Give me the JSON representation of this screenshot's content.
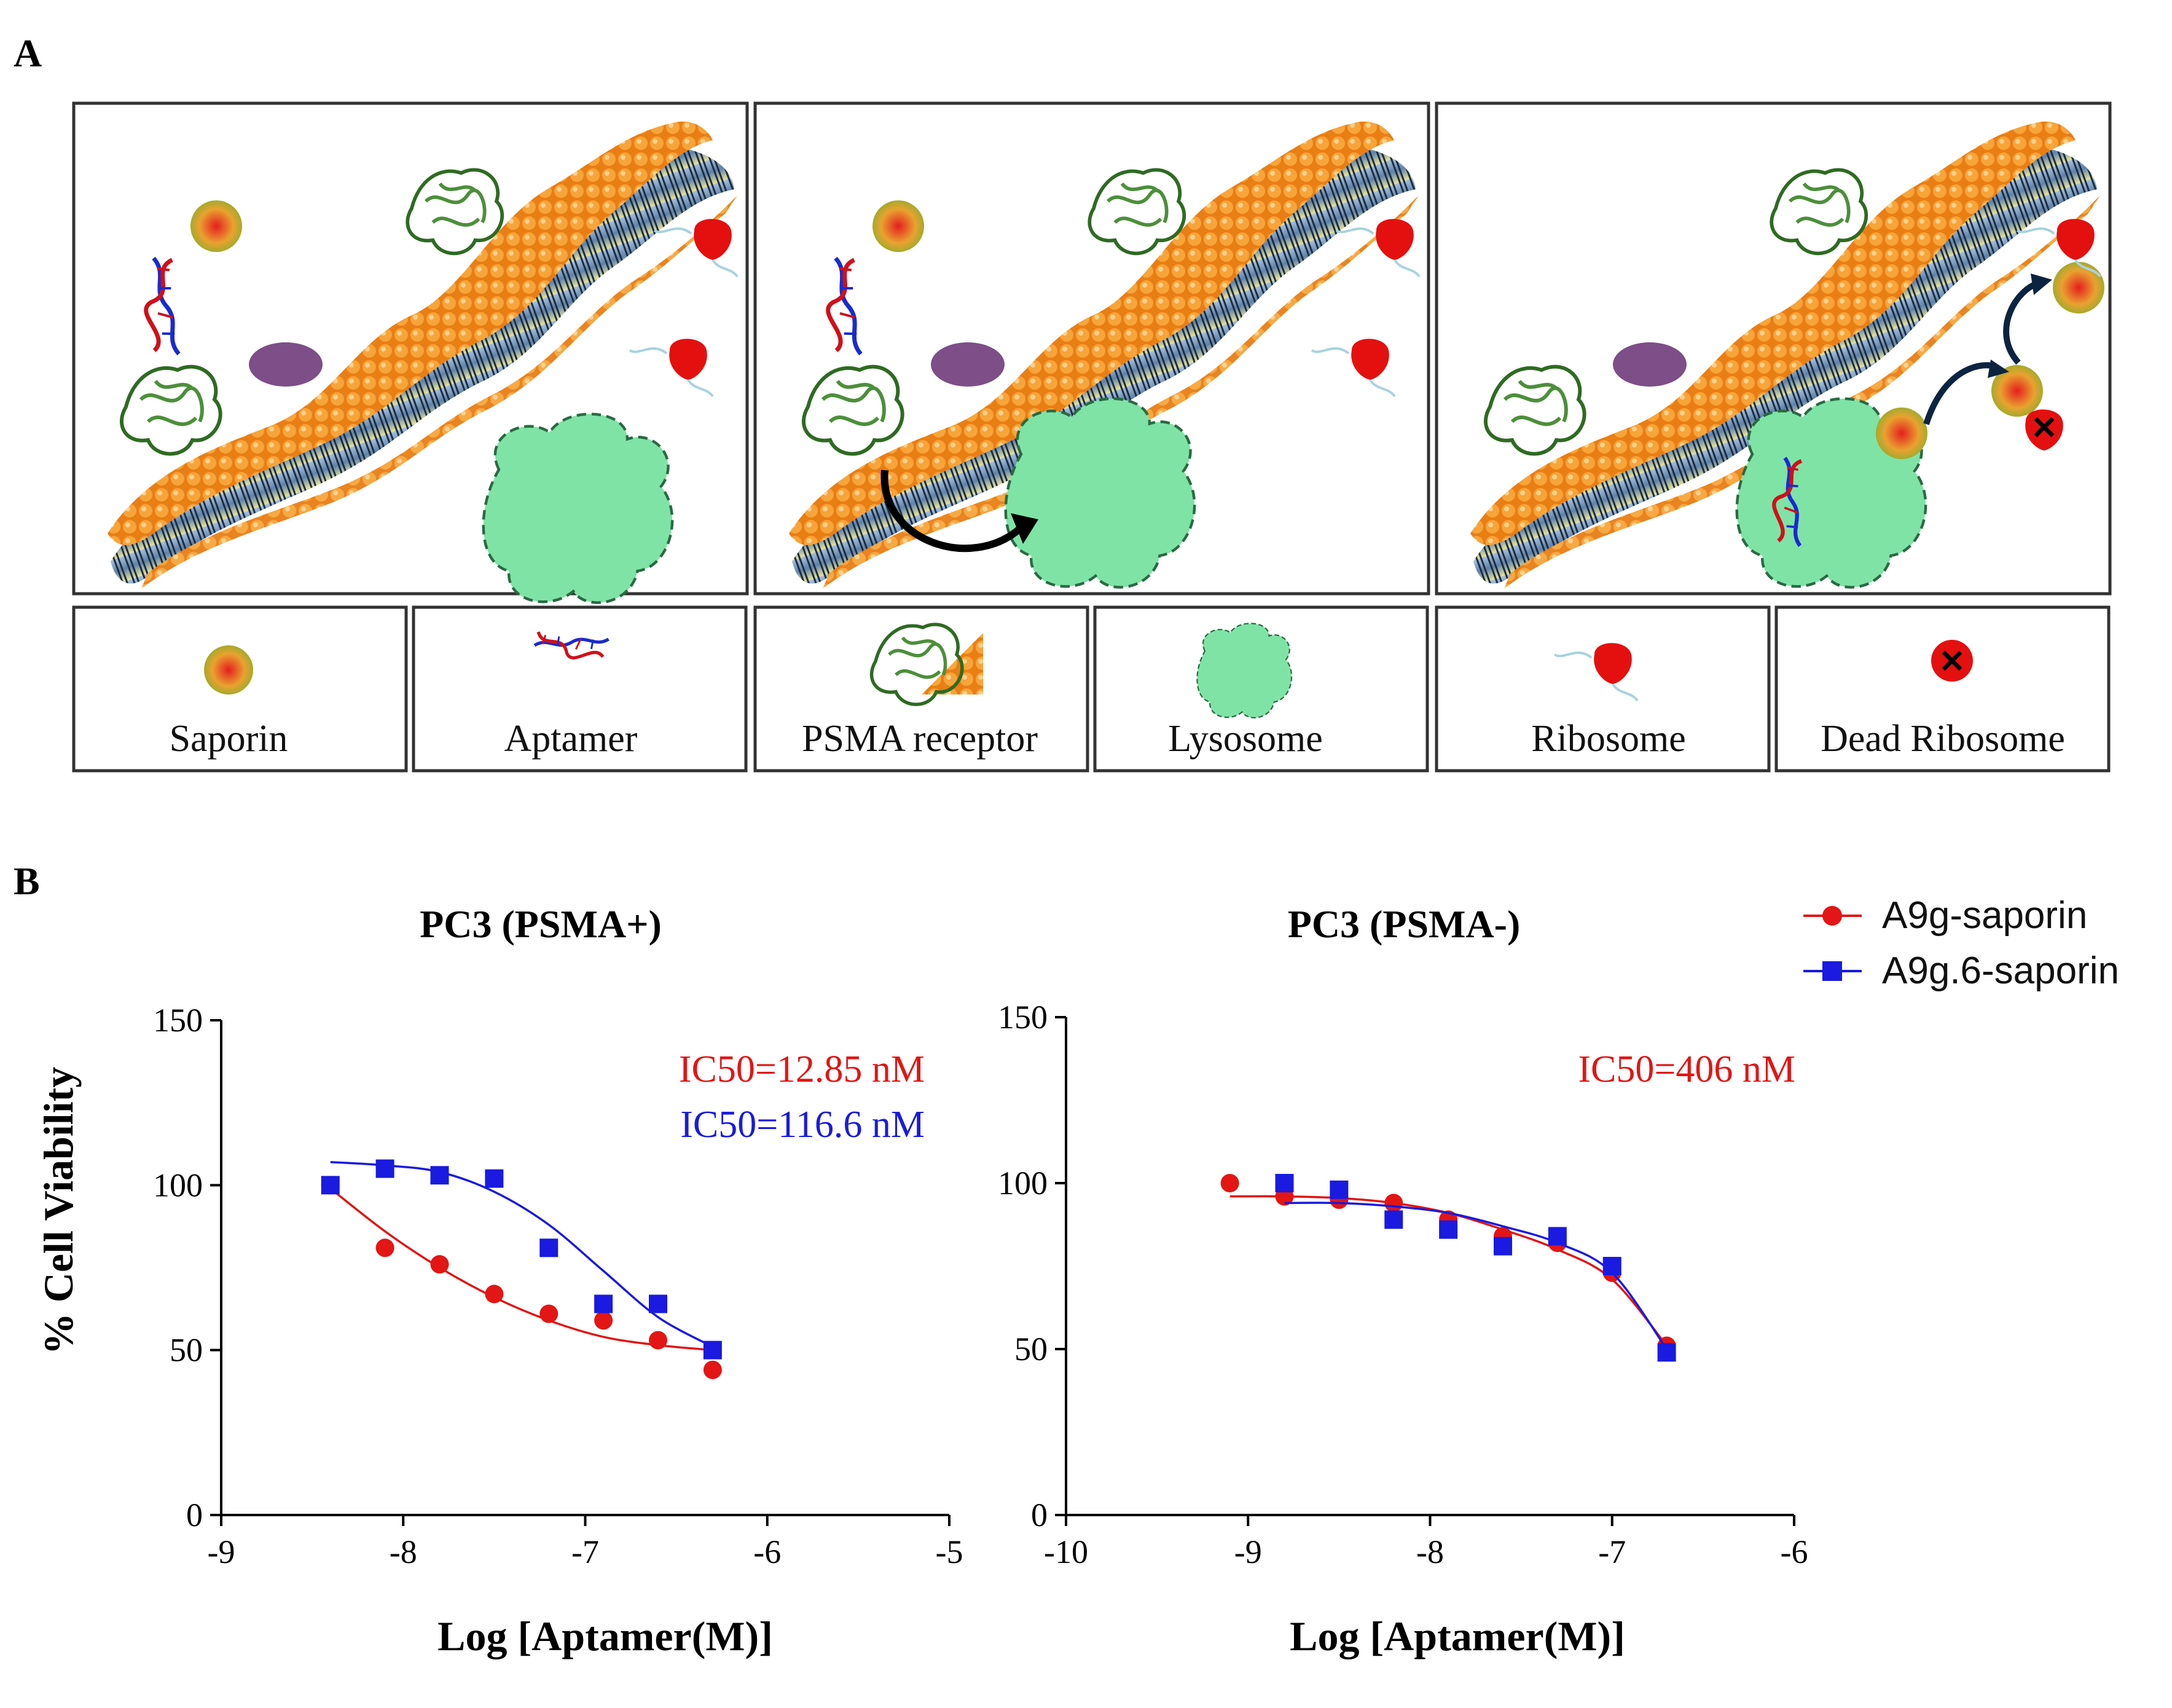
{
  "panel_a": {
    "letter": "A",
    "legend": [
      {
        "label": "Saporin",
        "icon": "saporin-icon"
      },
      {
        "label": "Aptamer",
        "icon": "aptamer-icon"
      },
      {
        "label": "PSMA receptor",
        "icon": "psma-receptor-icon"
      },
      {
        "label": "Lysosome",
        "icon": "lysosome-icon"
      },
      {
        "label": "Ribosome",
        "icon": "ribosome-icon"
      },
      {
        "label": "Dead Ribosome",
        "icon": "dead-ribosome-icon"
      }
    ],
    "colors": {
      "lipid_head": "#f0901e",
      "membrane_core": "#6e8fb5",
      "protein": "#2e6b22",
      "lysosome": "#7fe3a6",
      "ribosome": "#e41010",
      "dna_blue": "#1a2bd0",
      "dna_red": "#d0101a",
      "vesicle": "#7d4e88"
    }
  },
  "panel_b": {
    "letter": "B",
    "series_legend": [
      {
        "name": "A9g-saporin",
        "color": "#e31515",
        "marker": "circle"
      },
      {
        "name": "A9g.6-saporin",
        "color": "#1a1ae0",
        "marker": "square"
      }
    ]
  },
  "chart_data": [
    {
      "type": "scatter",
      "title": "PC3 (PSMA+)",
      "xlabel": "Log [Aptamer(M)]",
      "ylabel": "% Cell Viability",
      "xlim": [
        -9,
        -5
      ],
      "ylim": [
        0,
        150
      ],
      "xticks": [
        "-9",
        "-8",
        "-7",
        "-6",
        "-5"
      ],
      "yticks": [
        "0",
        "50",
        "100",
        "150"
      ],
      "annotations": [
        {
          "text": "IC50=12.85 nM",
          "color": "#e31515"
        },
        {
          "text": "IC50=116.6 nM",
          "color": "#1a1ae0"
        }
      ],
      "series": [
        {
          "name": "A9g-saporin",
          "color": "#e31515",
          "points": [
            [
              -8.4,
              100
            ],
            [
              -8.1,
              81
            ],
            [
              -7.8,
              76
            ],
            [
              -7.5,
              67
            ],
            [
              -7.2,
              61
            ],
            [
              -6.9,
              59
            ],
            [
              -6.6,
              53
            ],
            [
              -6.3,
              44
            ]
          ],
          "fit": [
            [
              -8.4,
              99
            ],
            [
              -8.1,
              86
            ],
            [
              -7.8,
              75
            ],
            [
              -7.5,
              66
            ],
            [
              -7.2,
              59
            ],
            [
              -6.9,
              54
            ],
            [
              -6.6,
              51.5
            ],
            [
              -6.3,
              50
            ]
          ]
        },
        {
          "name": "A9g.6-saporin",
          "color": "#1a1ae0",
          "points": [
            [
              -8.4,
              100
            ],
            [
              -8.1,
              105
            ],
            [
              -7.8,
              103
            ],
            [
              -7.5,
              102
            ],
            [
              -7.2,
              81
            ],
            [
              -6.9,
              64
            ],
            [
              -6.6,
              64
            ],
            [
              -6.3,
              50
            ]
          ],
          "fit": [
            [
              -8.4,
              107
            ],
            [
              -8.1,
              106
            ],
            [
              -7.8,
              104
            ],
            [
              -7.5,
              98
            ],
            [
              -7.2,
              88
            ],
            [
              -6.9,
              74
            ],
            [
              -6.6,
              60
            ],
            [
              -6.3,
              51
            ]
          ]
        }
      ]
    },
    {
      "type": "scatter",
      "title": "PC3 (PSMA-)",
      "xlabel": "Log [Aptamer(M)]",
      "ylabel": "",
      "xlim": [
        -10,
        -6
      ],
      "ylim": [
        0,
        150
      ],
      "xticks": [
        "-10",
        "-9",
        "-8",
        "-7",
        "-6"
      ],
      "yticks": [
        "0",
        "50",
        "100",
        "150"
      ],
      "annotations": [
        {
          "text": "IC50=406 nM",
          "color": "#e31515"
        }
      ],
      "series": [
        {
          "name": "A9g-saporin",
          "color": "#e31515",
          "points": [
            [
              -9.1,
              100
            ],
            [
              -8.8,
              96
            ],
            [
              -8.5,
              95
            ],
            [
              -8.2,
              94
            ],
            [
              -7.9,
              89
            ],
            [
              -7.6,
              84
            ],
            [
              -7.3,
              82
            ],
            [
              -7.0,
              73
            ],
            [
              -6.7,
              51
            ]
          ],
          "fit": [
            [
              -9.1,
              96
            ],
            [
              -8.8,
              96
            ],
            [
              -8.5,
              95.5
            ],
            [
              -8.2,
              94
            ],
            [
              -7.9,
              91
            ],
            [
              -7.6,
              86
            ],
            [
              -7.3,
              80
            ],
            [
              -7.0,
              71
            ],
            [
              -6.7,
              51
            ]
          ]
        },
        {
          "name": "A9g.6-saporin",
          "color": "#1a1ae0",
          "points": [
            [
              -8.8,
              100
            ],
            [
              -8.5,
              98
            ],
            [
              -8.2,
              89
            ],
            [
              -7.9,
              86
            ],
            [
              -7.6,
              81
            ],
            [
              -7.3,
              84
            ],
            [
              -7.0,
              75
            ],
            [
              -6.7,
              49
            ]
          ],
          "fit": [
            [
              -8.8,
              94
            ],
            [
              -8.5,
              94
            ],
            [
              -8.2,
              93
            ],
            [
              -7.9,
              91
            ],
            [
              -7.6,
              87
            ],
            [
              -7.3,
              82
            ],
            [
              -7.0,
              73
            ],
            [
              -6.7,
              50
            ]
          ]
        }
      ]
    }
  ]
}
